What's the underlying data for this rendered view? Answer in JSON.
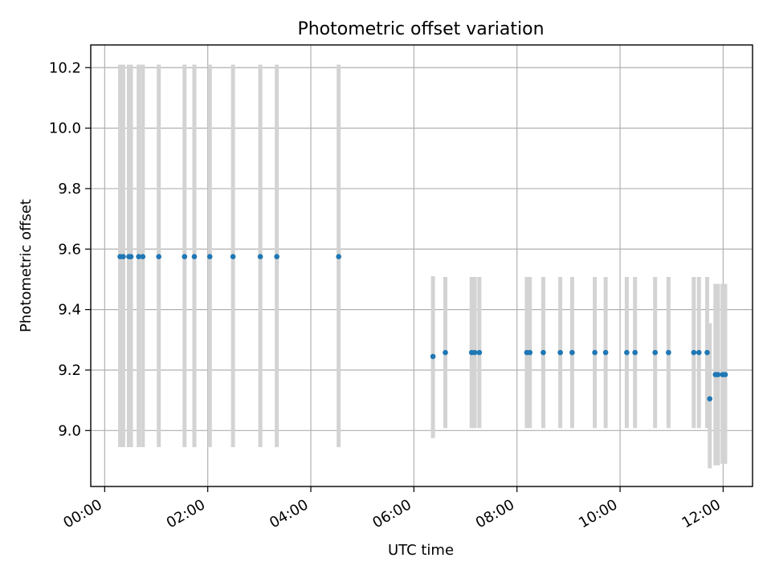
{
  "chart_data": {
    "type": "scatter",
    "title": "Photometric offset variation",
    "xlabel": "UTC time",
    "ylabel": "Photometric offset",
    "x_unit": "hours",
    "xlim": [
      -0.27,
      12.57
    ],
    "ylim": [
      8.815,
      10.275
    ],
    "x_tick_values": [
      0,
      2,
      4,
      6,
      8,
      10,
      12
    ],
    "x_tick_labels": [
      "00:00",
      "02:00",
      "04:00",
      "06:00",
      "08:00",
      "10:00",
      "12:00"
    ],
    "y_tick_values": [
      9.0,
      9.2,
      9.4,
      9.6,
      9.8,
      10.0,
      10.2
    ],
    "y_tick_labels": [
      "9.0",
      "9.2",
      "9.4",
      "9.6",
      "9.8",
      "10.0",
      "10.2"
    ],
    "grid": true,
    "colors": {
      "marker": "#1f77b4",
      "errorbar": "#d3d3d3",
      "grid": "#b0b0b0",
      "axes": "#000000"
    },
    "points": [
      {
        "x": 0.3,
        "y": 9.575,
        "lo": 8.945,
        "hi": 10.21
      },
      {
        "x": 0.36,
        "y": 9.575,
        "lo": 8.945,
        "hi": 10.21
      },
      {
        "x": 0.47,
        "y": 9.575,
        "lo": 8.945,
        "hi": 10.21
      },
      {
        "x": 0.51,
        "y": 9.575,
        "lo": 8.945,
        "hi": 10.21
      },
      {
        "x": 0.66,
        "y": 9.575,
        "lo": 8.945,
        "hi": 10.21
      },
      {
        "x": 0.74,
        "y": 9.575,
        "lo": 8.945,
        "hi": 10.21
      },
      {
        "x": 1.05,
        "y": 9.575,
        "lo": 8.945,
        "hi": 10.21
      },
      {
        "x": 1.55,
        "y": 9.575,
        "lo": 8.945,
        "hi": 10.21
      },
      {
        "x": 1.74,
        "y": 9.575,
        "lo": 8.945,
        "hi": 10.21
      },
      {
        "x": 2.04,
        "y": 9.575,
        "lo": 8.945,
        "hi": 10.21
      },
      {
        "x": 2.49,
        "y": 9.575,
        "lo": 8.945,
        "hi": 10.21
      },
      {
        "x": 3.02,
        "y": 9.575,
        "lo": 8.945,
        "hi": 10.21
      },
      {
        "x": 3.34,
        "y": 9.575,
        "lo": 8.945,
        "hi": 10.21
      },
      {
        "x": 4.54,
        "y": 9.575,
        "lo": 8.945,
        "hi": 10.21
      },
      {
        "x": 6.37,
        "y": 9.245,
        "lo": 8.975,
        "hi": 9.51
      },
      {
        "x": 6.61,
        "y": 9.258,
        "lo": 9.008,
        "hi": 9.508
      },
      {
        "x": 7.12,
        "y": 9.258,
        "lo": 9.008,
        "hi": 9.508
      },
      {
        "x": 7.18,
        "y": 9.258,
        "lo": 9.008,
        "hi": 9.508
      },
      {
        "x": 7.27,
        "y": 9.258,
        "lo": 9.008,
        "hi": 9.508
      },
      {
        "x": 8.19,
        "y": 9.258,
        "lo": 9.008,
        "hi": 9.508
      },
      {
        "x": 8.25,
        "y": 9.258,
        "lo": 9.008,
        "hi": 9.508
      },
      {
        "x": 8.51,
        "y": 9.258,
        "lo": 9.008,
        "hi": 9.508
      },
      {
        "x": 8.84,
        "y": 9.258,
        "lo": 9.008,
        "hi": 9.508
      },
      {
        "x": 9.07,
        "y": 9.258,
        "lo": 9.008,
        "hi": 9.508
      },
      {
        "x": 9.51,
        "y": 9.258,
        "lo": 9.008,
        "hi": 9.508
      },
      {
        "x": 9.72,
        "y": 9.258,
        "lo": 9.008,
        "hi": 9.508
      },
      {
        "x": 10.13,
        "y": 9.258,
        "lo": 9.008,
        "hi": 9.508
      },
      {
        "x": 10.29,
        "y": 9.258,
        "lo": 9.008,
        "hi": 9.508
      },
      {
        "x": 10.68,
        "y": 9.258,
        "lo": 9.008,
        "hi": 9.508
      },
      {
        "x": 10.94,
        "y": 9.258,
        "lo": 9.008,
        "hi": 9.508
      },
      {
        "x": 11.43,
        "y": 9.258,
        "lo": 9.008,
        "hi": 9.508
      },
      {
        "x": 11.53,
        "y": 9.258,
        "lo": 9.008,
        "hi": 9.508
      },
      {
        "x": 11.69,
        "y": 9.258,
        "lo": 9.008,
        "hi": 9.508
      },
      {
        "x": 11.74,
        "y": 9.105,
        "lo": 8.875,
        "hi": 9.355
      },
      {
        "x": 11.85,
        "y": 9.185,
        "lo": 8.885,
        "hi": 9.485
      },
      {
        "x": 11.9,
        "y": 9.185,
        "lo": 8.885,
        "hi": 9.485
      },
      {
        "x": 11.99,
        "y": 9.185,
        "lo": 8.89,
        "hi": 9.485
      },
      {
        "x": 12.04,
        "y": 9.185,
        "lo": 8.89,
        "hi": 9.485
      }
    ]
  }
}
